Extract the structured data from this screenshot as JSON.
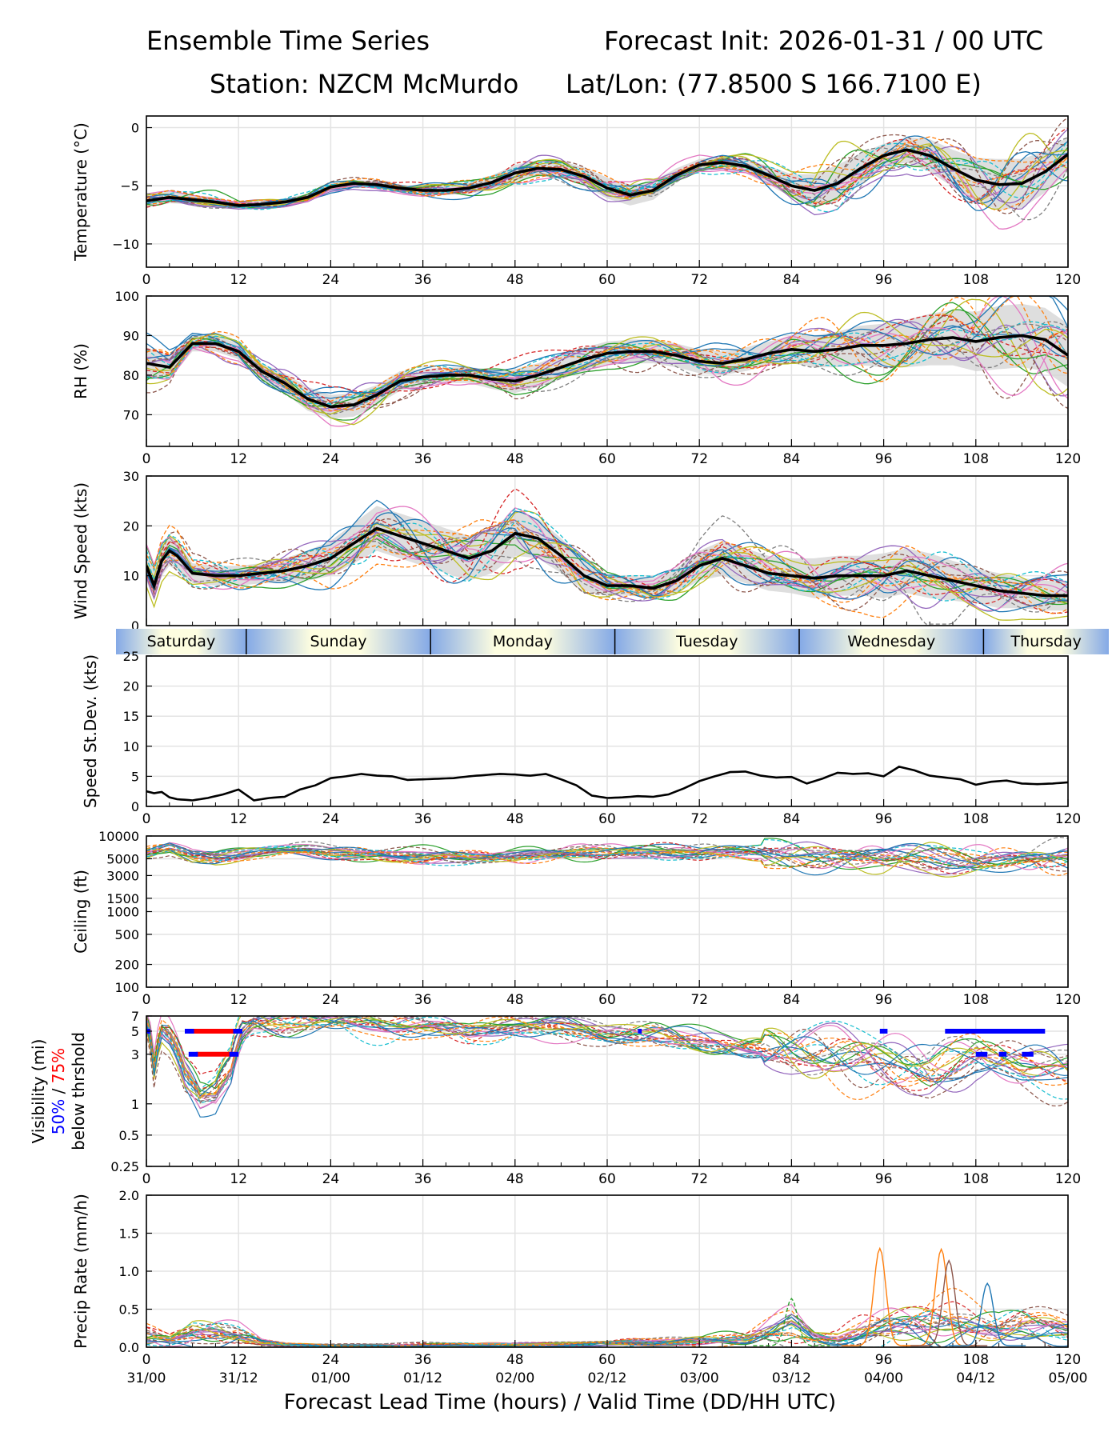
{
  "header": {
    "title": "Ensemble Time Series",
    "init": "Forecast Init: 2026-01-31 / 00 UTC",
    "station": "Station: NZCM McMurdo",
    "latlon": "Lat/Lon: (77.8500 S 166.7100 E)"
  },
  "x_axis": {
    "label": "Forecast Lead Time (hours) / Valid Time (DD/HH UTC)",
    "hours": [
      0,
      12,
      24,
      36,
      48,
      60,
      72,
      84,
      96,
      108,
      120
    ],
    "hour_labels": [
      "0",
      "12",
      "24",
      "36",
      "48",
      "60",
      "72",
      "84",
      "96",
      "108",
      "120"
    ],
    "valid_labels": [
      "31/00",
      "31/12",
      "01/00",
      "01/12",
      "02/00",
      "02/12",
      "03/00",
      "03/12",
      "04/00",
      "04/12",
      "05/00"
    ]
  },
  "days": [
    {
      "name": "Saturday",
      "start": 0,
      "end": 13
    },
    {
      "name": "Sunday",
      "start": 13,
      "end": 37
    },
    {
      "name": "Monday",
      "start": 37,
      "end": 61
    },
    {
      "name": "Tuesday",
      "start": 61,
      "end": 85
    },
    {
      "name": "Wednesday",
      "start": 85,
      "end": 109
    },
    {
      "name": "Thursday",
      "start": 109,
      "end": 120
    }
  ],
  "colors": {
    "members": [
      "#1f77b4",
      "#ff7f0e",
      "#2ca02c",
      "#d62728",
      "#9467bd",
      "#8c564b",
      "#e377c2",
      "#7f7f7f",
      "#bcbd22",
      "#17becf"
    ],
    "mean": "#000000",
    "spread": "#d3d3d3",
    "vis50": "#0000ff",
    "vis75": "#ff0000"
  },
  "chart_data": [
    {
      "type": "line",
      "id": "temp",
      "ylabel": "Temperature (°C)",
      "ylim": [
        -12,
        1
      ],
      "yticks": [
        0,
        -5,
        -10
      ],
      "x": [
        0,
        3,
        6,
        9,
        12,
        15,
        18,
        21,
        24,
        27,
        30,
        33,
        36,
        39,
        42,
        45,
        48,
        51,
        54,
        57,
        60,
        63,
        66,
        69,
        72,
        75,
        78,
        81,
        84,
        87,
        90,
        93,
        96,
        99,
        102,
        105,
        108,
        111,
        114,
        117,
        120
      ],
      "mean": [
        -6.3,
        -6.0,
        -6.2,
        -6.4,
        -6.7,
        -6.6,
        -6.4,
        -6.0,
        -5.1,
        -4.8,
        -4.9,
        -5.2,
        -5.4,
        -5.4,
        -5.2,
        -4.7,
        -3.9,
        -3.5,
        -3.6,
        -4.2,
        -5.2,
        -5.8,
        -5.4,
        -4.1,
        -3.2,
        -3.0,
        -3.3,
        -4.1,
        -5.0,
        -5.4,
        -4.8,
        -3.5,
        -2.4,
        -1.9,
        -2.4,
        -3.5,
        -4.5,
        -4.9,
        -4.8,
        -3.8,
        -2.3
      ],
      "spread_amp": [
        0.6,
        0.5,
        0.4,
        0.4,
        0.3,
        0.3,
        0.3,
        0.3,
        0.3,
        0.3,
        0.3,
        0.3,
        0.4,
        0.4,
        0.5,
        0.6,
        0.7,
        0.7,
        0.7,
        0.8,
        0.9,
        0.9,
        0.8,
        0.6,
        0.5,
        0.5,
        0.6,
        0.8,
        1.0,
        1.4,
        1.6,
        1.3,
        1.0,
        1.1,
        1.4,
        1.6,
        1.9,
        2.2,
        2.1,
        1.8,
        1.5
      ],
      "n_members": 22
    },
    {
      "type": "line",
      "id": "rh",
      "ylabel": "RH (%)",
      "ylim": [
        62,
        100
      ],
      "yticks": [
        100,
        90,
        80,
        70
      ],
      "x": [
        0,
        3,
        6,
        9,
        12,
        15,
        18,
        21,
        24,
        27,
        30,
        33,
        36,
        39,
        42,
        45,
        48,
        51,
        54,
        57,
        60,
        63,
        66,
        69,
        72,
        75,
        78,
        81,
        84,
        87,
        90,
        93,
        96,
        99,
        102,
        105,
        108,
        111,
        114,
        117,
        120
      ],
      "mean": [
        83,
        82,
        88,
        88,
        86,
        81,
        78,
        74,
        72,
        72.5,
        75,
        78.5,
        79.5,
        80,
        80,
        79,
        78.5,
        80,
        82,
        84,
        85.5,
        86,
        86,
        85,
        83.5,
        83,
        84,
        85.5,
        86.5,
        86,
        86.5,
        87.5,
        87.5,
        88,
        89,
        89.5,
        88.5,
        89.5,
        90,
        89,
        85
      ],
      "spread_amp": [
        4,
        3,
        2,
        2,
        2,
        2,
        2.5,
        3,
        3,
        3,
        2.5,
        2.5,
        2,
        2,
        2,
        2.5,
        3,
        3,
        3,
        3,
        3,
        3,
        3,
        3,
        3,
        3,
        3,
        3,
        3.5,
        4,
        4.5,
        5,
        5.5,
        6,
        6.5,
        7,
        7.5,
        8,
        8,
        8,
        8
      ],
      "n_members": 22
    },
    {
      "type": "line",
      "id": "wind",
      "ylabel": "Wind Speed (kts)",
      "ylim": [
        0,
        30
      ],
      "yticks": [
        0,
        10,
        20,
        30
      ],
      "x": [
        0,
        1,
        2,
        3,
        4,
        6,
        9,
        12,
        15,
        18,
        21,
        24,
        27,
        30,
        33,
        36,
        39,
        42,
        45,
        48,
        51,
        54,
        57,
        60,
        63,
        66,
        69,
        72,
        75,
        78,
        81,
        84,
        87,
        90,
        93,
        96,
        99,
        102,
        105,
        108,
        111,
        114,
        117,
        120
      ],
      "mean": [
        12,
        8,
        13,
        15,
        14,
        10.5,
        10,
        10,
        10.5,
        11,
        12,
        13.5,
        16.5,
        19.5,
        18,
        16.5,
        15,
        13.5,
        15,
        18.5,
        17.5,
        14,
        10,
        8,
        8,
        7.5,
        9,
        12,
        13.5,
        12,
        10.5,
        10,
        9.5,
        10,
        10,
        10,
        11,
        10,
        9,
        8,
        7,
        6.5,
        6,
        6
      ],
      "spread_amp": [
        3,
        3,
        3,
        3,
        3,
        2,
        2,
        2,
        2,
        2.5,
        3,
        3.5,
        4,
        4.5,
        4.5,
        4.5,
        4.5,
        4.5,
        4.5,
        4.5,
        4,
        3.5,
        3,
        2,
        2,
        2,
        2.5,
        3,
        3.5,
        3.5,
        3.5,
        3.5,
        4,
        4,
        4,
        4.5,
        4.5,
        4.5,
        4,
        3.5,
        3.5,
        3,
        3,
        3
      ],
      "n_members": 22
    },
    {
      "type": "line",
      "id": "sd",
      "ylabel": "Speed St.Dev. (kts)",
      "ylim": [
        0,
        25
      ],
      "yticks": [
        0,
        5,
        10,
        15,
        20,
        25
      ],
      "x": [
        0,
        1,
        2,
        3,
        4,
        6,
        8,
        10,
        12,
        14,
        16,
        18,
        20,
        22,
        24,
        26,
        28,
        30,
        32,
        34,
        36,
        38,
        40,
        42,
        44,
        46,
        48,
        50,
        52,
        54,
        56,
        58,
        60,
        62,
        64,
        66,
        68,
        70,
        72,
        74,
        76,
        78,
        80,
        82,
        84,
        86,
        88,
        90,
        92,
        94,
        96,
        98,
        100,
        102,
        104,
        106,
        108,
        110,
        112,
        114,
        116,
        118,
        120
      ],
      "values": [
        2.5,
        2.2,
        2.4,
        1.5,
        1.2,
        1.0,
        1.4,
        2.0,
        2.8,
        1.0,
        1.4,
        1.6,
        2.8,
        3.5,
        4.7,
        5.0,
        5.4,
        5.1,
        5.0,
        4.4,
        4.5,
        4.6,
        4.7,
        5.0,
        5.2,
        5.4,
        5.3,
        5.1,
        5.4,
        4.5,
        3.5,
        1.8,
        1.4,
        1.5,
        1.7,
        1.6,
        2.0,
        3.0,
        4.2,
        5.0,
        5.7,
        5.8,
        5.1,
        4.8,
        4.9,
        3.8,
        4.6,
        5.6,
        5.4,
        5.5,
        5.0,
        6.6,
        6.0,
        5.1,
        4.8,
        4.5,
        3.6,
        4.1,
        4.3,
        3.8,
        3.7,
        3.8,
        4.0
      ]
    },
    {
      "type": "line",
      "id": "ceil",
      "ylabel": "Ceiling (ft)",
      "scale": "log",
      "ylim": [
        100,
        10000
      ],
      "yticks": [
        10000,
        5000,
        3000,
        1500,
        1000,
        500,
        200,
        100
      ],
      "ytick_labels": [
        "10000",
        "5000",
        "3000",
        "1500",
        "1000",
        "500",
        "200",
        "100"
      ],
      "x": [
        0,
        3,
        6,
        9,
        12,
        15,
        18,
        21,
        24,
        27,
        30,
        33,
        36,
        39,
        42,
        45,
        48,
        51,
        54,
        57,
        60,
        63,
        66,
        69,
        72,
        75,
        78,
        81,
        84,
        87,
        90,
        93,
        96,
        99,
        102,
        105,
        108,
        111,
        114,
        117,
        120
      ],
      "center": [
        6000,
        7000,
        5500,
        5200,
        5600,
        6000,
        6300,
        6500,
        6200,
        6000,
        5800,
        5600,
        5400,
        5300,
        5100,
        5200,
        5400,
        5600,
        5800,
        6000,
        6000,
        6200,
        6300,
        6200,
        6000,
        6100,
        6000,
        5800,
        5700,
        5500,
        5400,
        5300,
        5000,
        5200,
        5300,
        5000,
        4800,
        4900,
        5100,
        5000,
        5000
      ],
      "n_members": 22
    },
    {
      "type": "line",
      "id": "vis",
      "ylabel": "Visibility (mi)",
      "scale": "log",
      "ylabel_sub": "below thrshold",
      "ylabel_p50": "50%",
      "ylabel_sep": " / ",
      "ylabel_p75": "75%",
      "ylim": [
        0.25,
        7
      ],
      "yticks": [
        7,
        5,
        3,
        1,
        0.5,
        0.25
      ],
      "ytick_labels": [
        "7",
        "5",
        "3",
        "1",
        "0.5",
        "0.25"
      ],
      "x": [
        0,
        1,
        2,
        3,
        5,
        7,
        9,
        11,
        12.5,
        14,
        18,
        24,
        30,
        36,
        42,
        45,
        48,
        54,
        60,
        66,
        72,
        78,
        84,
        90,
        96,
        102,
        108,
        114,
        120
      ],
      "center": [
        6,
        2,
        5,
        4.5,
        2,
        1.2,
        1.3,
        2.2,
        5,
        6,
        6,
        6,
        6,
        5.5,
        4.5,
        5,
        5.5,
        5.5,
        4.5,
        4.5,
        4,
        3.5,
        3,
        3,
        2.5,
        2,
        2.5,
        2,
        2
      ],
      "band_50": [
        [
          0,
          0.5,
          5
        ],
        [
          5,
          12.5,
          5
        ],
        [
          5.5,
          12,
          3
        ],
        [
          64,
          64.5,
          5
        ],
        [
          95.5,
          96.5,
          5
        ],
        [
          104,
          117,
          5
        ],
        [
          108,
          109.5,
          3
        ],
        [
          111,
          112,
          3
        ],
        [
          114,
          115.5,
          3
        ]
      ],
      "band_75": [
        [
          5,
          12,
          5
        ],
        [
          6.5,
          11.5,
          3
        ]
      ],
      "n_members": 22
    },
    {
      "type": "line",
      "id": "precip",
      "ylabel": "Precip Rate (mm/h)",
      "ylim": [
        0,
        2
      ],
      "yticks": [
        0.0,
        0.5,
        1.0,
        1.5,
        2.0
      ],
      "ytick_labels": [
        "0.0",
        "0.5",
        "1.0",
        "1.5",
        "2.0"
      ],
      "x": [
        0,
        3,
        6,
        9,
        12,
        15,
        18,
        24,
        36,
        48,
        60,
        66,
        72,
        78,
        81,
        84,
        87,
        90,
        93,
        96,
        99,
        102,
        105,
        108,
        111,
        114,
        117,
        120
      ],
      "center": [
        0.15,
        0.1,
        0.2,
        0.2,
        0.15,
        0.05,
        0.03,
        0.02,
        0.03,
        0.03,
        0.05,
        0.06,
        0.08,
        0.1,
        0.2,
        0.3,
        0.15,
        0.12,
        0.2,
        0.25,
        0.3,
        0.35,
        0.35,
        0.3,
        0.25,
        0.3,
        0.25,
        0.2
      ],
      "peaks": [
        {
          "x": 95.5,
          "y": 1.28
        },
        {
          "x": 103.5,
          "y": 1.27
        },
        {
          "x": 104.5,
          "y": 1.12
        },
        {
          "x": 84,
          "y": 0.62
        },
        {
          "x": 109.5,
          "y": 0.82
        }
      ],
      "n_members": 22
    }
  ]
}
